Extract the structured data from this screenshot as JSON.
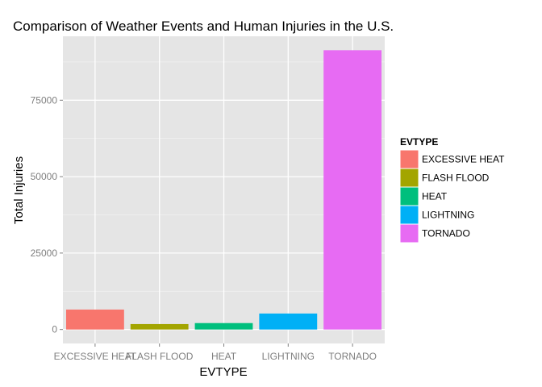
{
  "chart_data": {
    "type": "bar",
    "title": "Comparison of Weather Events and Human Injuries in the U.S.",
    "xlabel": "EVTYPE",
    "ylabel": "Total Injuries",
    "categories": [
      "EXCESSIVE HEAT",
      "FLASH FLOOD",
      "HEAT",
      "LIGHTNING",
      "TORNADO"
    ],
    "values": [
      6525,
      1777,
      2100,
      5230,
      91346
    ],
    "colors": [
      "#F8766D",
      "#A3A500",
      "#00BF7D",
      "#00B0F6",
      "#E76BF3"
    ],
    "ylim": [
      -4567,
      95913
    ],
    "yticks": [
      0,
      25000,
      50000,
      75000
    ],
    "ytick_labels": [
      "0",
      "25000",
      "50000",
      "75000"
    ],
    "grid": true,
    "legend": {
      "title": "EVTYPE",
      "position": "right",
      "entries": [
        "EXCESSIVE HEAT",
        "FLASH FLOOD",
        "HEAT",
        "LIGHTNING",
        "TORNADO"
      ]
    }
  }
}
